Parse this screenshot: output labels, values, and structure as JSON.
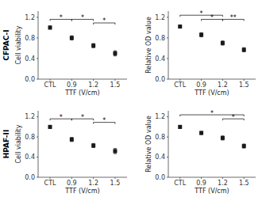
{
  "chart_data": [
    {
      "type": "scatter",
      "categories": [
        "CTL",
        "0.9",
        "1.2",
        "1.5"
      ],
      "values": [
        1.0,
        0.8,
        0.65,
        0.5
      ],
      "errors": [
        0.03,
        0.04,
        0.04,
        0.05
      ],
      "color": "#1a1a1a",
      "marker": "square",
      "xlabel": "TTF (V/cm)",
      "ylabel": "Cell viability",
      "ylim": [
        0,
        1.32
      ],
      "yticks": [
        {
          "value": 0,
          "label": "0.0"
        },
        0.4,
        0.8,
        1.2
      ],
      "brackets": [
        {
          "x1": 0,
          "x2": 1,
          "y": 1.16,
          "label": "*"
        },
        {
          "x1": 1,
          "x2": 2,
          "y": 1.16,
          "label": "*"
        },
        {
          "x1": 2,
          "x2": 3,
          "y": 1.09,
          "label": "*"
        }
      ],
      "annotations": [
        "CFPAC-I"
      ]
    },
    {
      "type": "scatter",
      "categories": [
        "CTL",
        "0.9",
        "1.2",
        "1.5"
      ],
      "values": [
        1.02,
        0.86,
        0.7,
        0.57
      ],
      "errors": [
        0.03,
        0.04,
        0.04,
        0.04
      ],
      "color": "#1a1a1a",
      "marker": "square",
      "xlabel": "TTF (V/cm)",
      "ylabel": "Relative OD value",
      "ylim": [
        0,
        1.32
      ],
      "yticks": [
        {
          "value": 0,
          "label": "0.0"
        },
        0.4,
        0.8,
        1.2
      ],
      "brackets": [
        {
          "x1": 0,
          "x2": 2,
          "y": 1.24,
          "label": "*"
        },
        {
          "x1": 1,
          "x2": 2,
          "y": 1.16,
          "label": "*"
        },
        {
          "x1": 2,
          "x2": 3,
          "y": 1.16,
          "label": "**"
        }
      ]
    },
    {
      "type": "scatter",
      "categories": [
        "CTL",
        "0.9",
        "1.2",
        "1.5"
      ],
      "values": [
        1.0,
        0.75,
        0.63,
        0.52
      ],
      "errors": [
        0.03,
        0.04,
        0.04,
        0.05
      ],
      "color": "#1a1a1a",
      "marker": "square",
      "xlabel": "TTF (V/cm)",
      "ylabel": "Cell viability",
      "ylim": [
        0,
        1.32
      ],
      "yticks": [
        {
          "value": 0,
          "label": "0.0"
        },
        0.4,
        0.8,
        1.2
      ],
      "brackets": [
        {
          "x1": 0,
          "x2": 1,
          "y": 1.16,
          "label": "*"
        },
        {
          "x1": 1,
          "x2": 2,
          "y": 1.16,
          "label": "*"
        },
        {
          "x1": 2,
          "x2": 3,
          "y": 1.09,
          "label": "*"
        }
      ],
      "annotations": [
        "HPAF-II"
      ]
    },
    {
      "type": "scatter",
      "categories": [
        "CTL",
        "0.9",
        "1.2",
        "1.5"
      ],
      "values": [
        1.0,
        0.88,
        0.78,
        0.62
      ],
      "errors": [
        0.03,
        0.03,
        0.04,
        0.04
      ],
      "color": "#1a1a1a",
      "marker": "square",
      "xlabel": "TTF (V/cm)",
      "ylabel": "Relative OD value",
      "ylim": [
        0,
        1.32
      ],
      "yticks": [
        {
          "value": 0,
          "label": "0.0"
        },
        0.4,
        0.8,
        1.2
      ],
      "brackets": [
        {
          "x1": 0,
          "x2": 3,
          "y": 1.24,
          "label": "*"
        },
        {
          "x1": 2,
          "x2": 3,
          "y": 1.16,
          "label": "*"
        }
      ]
    }
  ]
}
